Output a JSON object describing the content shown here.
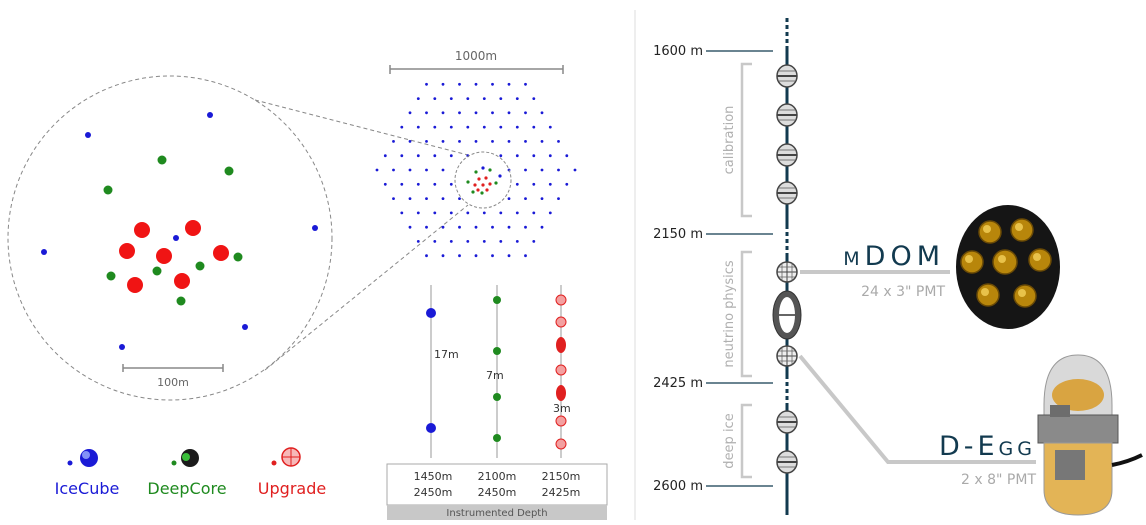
{
  "left_panel": {
    "scale_zoom": "100m",
    "scale_top": "1000m",
    "spacings": [
      "17m",
      "7m",
      "3m"
    ],
    "depth_table": {
      "caption": "Instrumented Depth",
      "columns": [
        {
          "top": "1450m",
          "bottom": "2450m"
        },
        {
          "top": "2100m",
          "bottom": "2450m"
        },
        {
          "top": "2150m",
          "bottom": "2425m"
        }
      ]
    },
    "legend": [
      {
        "label": "IceCube",
        "color": "#1a1ad6"
      },
      {
        "label": "DeepCore",
        "color": "#1f8a1f"
      },
      {
        "label": "Upgrade",
        "color": "#e02020"
      }
    ]
  },
  "right_panel": {
    "depths": [
      "1600 m",
      "2150 m",
      "2425 m",
      "2600 m"
    ],
    "regions": [
      "calibration",
      "neutrino physics",
      "deep ice"
    ],
    "modules": [
      {
        "name": "mDOM",
        "detail": "24 x 3\" PMT"
      },
      {
        "name": "D-Egg",
        "detail": "2 x 8\" PMT"
      }
    ],
    "string_color": "#123a4f"
  }
}
